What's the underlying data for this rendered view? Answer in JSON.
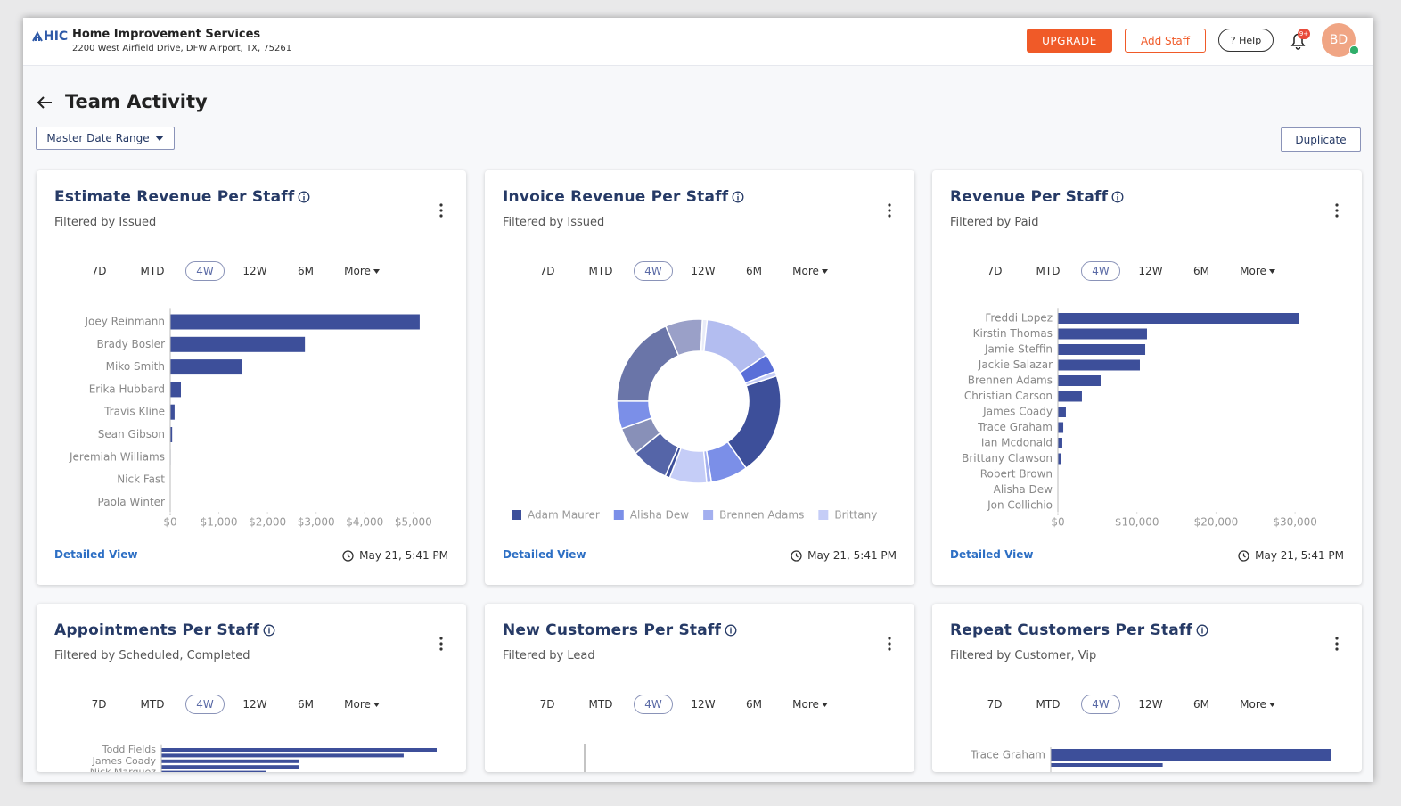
{
  "header": {
    "logo": "HIC",
    "company": "Home Improvement Services",
    "address": "2200 West Airfield Drive, DFW Airport, TX, 75261",
    "upgrade": "UPGRADE",
    "add_staff": "Add Staff",
    "help": "? Help",
    "badge": "9+",
    "avatar": "BD"
  },
  "page": {
    "title": "Team Activity",
    "date_range": "Master Date Range",
    "duplicate": "Duplicate"
  },
  "ranges": [
    "7D",
    "MTD",
    "4W",
    "12W",
    "6M",
    "More"
  ],
  "cards": [
    {
      "title": "Estimate Revenue Per Staff",
      "subtitle": "Filtered by Issued",
      "link": "Detailed View",
      "timestamp": "May 21, 5:41 PM",
      "chart": {
        "type": "hbar",
        "color": "#3d4f9a",
        "categories": [
          "Joey Reinmann",
          "Brady Bosler",
          "Miko Smith",
          "Erika Hubbard",
          "Travis Kline",
          "Sean Gibson",
          "Jeremiah Williams",
          "Nick Fast",
          "Paola Winter"
        ],
        "values": [
          5130,
          2770,
          1480,
          220,
          90,
          40,
          10,
          5,
          5
        ],
        "xlim": [
          0,
          5150
        ],
        "xticks": [
          {
            "value": 0,
            "label": "$0"
          },
          {
            "value": 1000,
            "label": "$1,000"
          },
          {
            "value": 2000,
            "label": "$2,000"
          },
          {
            "value": 3000,
            "label": "$3,000"
          },
          {
            "value": 4000,
            "label": "$4,000"
          },
          {
            "value": 5000,
            "label": "$5,000"
          }
        ]
      }
    },
    {
      "title": "Invoice Revenue Per Staff",
      "subtitle": "Filtered by Issued",
      "link": "Detailed View",
      "timestamp": "May 21, 5:41 PM",
      "chart": {
        "type": "donut",
        "categories": [
          "Adam Maurer",
          "Alisha Dew",
          "Brennen Adams",
          "Brittany",
          null,
          null,
          null,
          null,
          null,
          null,
          null,
          null,
          null,
          null
        ],
        "values": [
          22,
          8,
          1,
          8,
          1,
          8,
          6,
          6,
          20,
          8,
          1,
          15,
          4,
          1
        ],
        "colors": [
          "#3d4f9a",
          "#7b8fe8",
          "#a3afef",
          "#c5cdf7",
          "#3d4f9a",
          "#5565a8",
          "#8890b8",
          "#7b8fe8",
          "#6a75a8",
          "#9aa0c8",
          "#e8ebf8",
          "#b3bdf0",
          "#5a6fd8",
          "#c5cdf7"
        ]
      }
    },
    {
      "title": "Revenue Per Staff",
      "subtitle": "Filtered by Paid",
      "link": "Detailed View",
      "timestamp": "May 21, 5:41 PM",
      "chart": {
        "type": "hbar",
        "color": "#3d4f9a",
        "categories": [
          "Freddi Lopez",
          "Kirstin Thomas",
          "Jamie Steffin",
          "Jackie Salazar",
          "Brennen Adams",
          "Christian Carson",
          "James Coady",
          "Trace Graham",
          "Ian Mcdonald",
          "Brittany Clawson",
          "Robert Brown",
          "Alisha Dew",
          "Jon Collichio"
        ],
        "values": [
          30550,
          11270,
          11050,
          10370,
          5410,
          3040,
          1010,
          680,
          560,
          340,
          50,
          20,
          10
        ],
        "xlim": [
          0,
          31000
        ],
        "xticks": [
          {
            "value": 0,
            "label": "$0"
          },
          {
            "value": 10000,
            "label": "$10,000"
          },
          {
            "value": 20000,
            "label": "$20,000"
          },
          {
            "value": 30000,
            "label": "$30,000"
          }
        ]
      }
    },
    {
      "title": "Appointments Per Staff",
      "subtitle": "Filtered by Scheduled, Completed",
      "chart": {
        "type": "hbar",
        "color": "#3d4f9a",
        "categories": [
          "Todd Fields",
          null,
          "James Coady",
          null,
          "Nick Marquez"
        ],
        "values": [
          50,
          44,
          25,
          25,
          19
        ],
        "xlim": [
          0,
          50
        ]
      }
    },
    {
      "title": "New Customers Per Staff",
      "subtitle": "Filtered by Lead",
      "chart": {
        "type": "empty"
      }
    },
    {
      "title": "Repeat Customers Per Staff",
      "subtitle": "Filtered by Customer, Vip",
      "chart": {
        "type": "hbar",
        "color": "#3d4f9a",
        "categories": [
          "Trace Graham",
          null
        ],
        "values": [
          10,
          4
        ],
        "xlim": [
          0,
          10
        ]
      }
    }
  ]
}
